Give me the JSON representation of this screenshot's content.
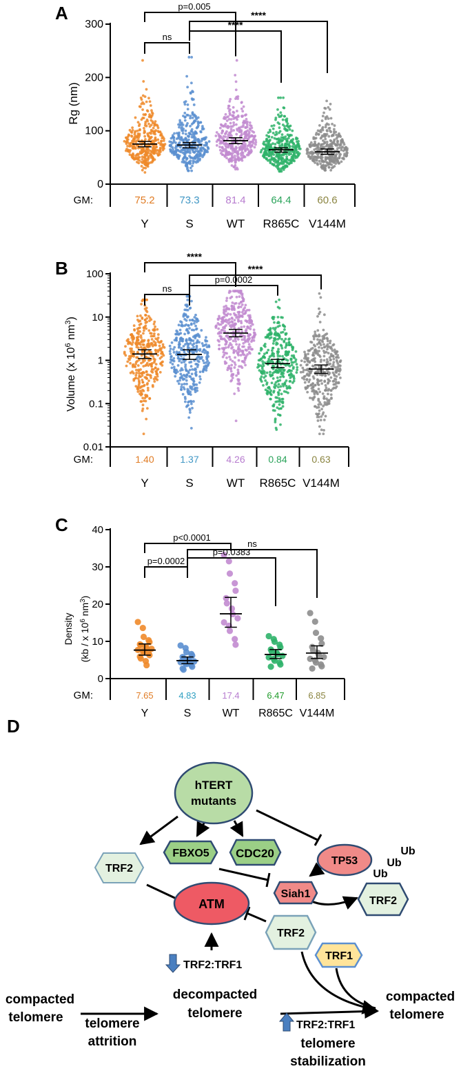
{
  "groups": [
    "Y",
    "S",
    "WT",
    "R865C",
    "V144M"
  ],
  "gm_label": "GM:",
  "colors": {
    "Y": "#ef8a2a",
    "S": "#5b8fd0",
    "WT": "#c28bd0",
    "R865C": "#2fb36a",
    "V144M": "#8d8d8d",
    "gm_Y": "#e07b23",
    "gm_S": "#3f96c4",
    "gm_WT": "#b77ccf",
    "gm_R865C": "#2aa35a",
    "gm_V144M": "#8a8440",
    "gm_S_C": "#2fa0c2",
    "gm_R865C_C": "#1f9a2a",
    "gm_V144M_C": "#8a8440"
  },
  "chart_data": [
    {
      "panel": "A",
      "type": "scatter",
      "ylabel": "Rg (nm)",
      "ylim": [
        0,
        300
      ],
      "yticks": [
        "0",
        "100",
        "200",
        "300"
      ],
      "categories": [
        "Y",
        "S",
        "WT",
        "R865C",
        "V144M"
      ],
      "gm": [
        "75.2",
        "73.3",
        "81.4",
        "64.4",
        "60.6"
      ],
      "gm_values": [
        75.2,
        73.3,
        81.4,
        64.4,
        60.6
      ],
      "ci": [
        [
          70,
          80
        ],
        [
          68,
          78
        ],
        [
          76,
          87
        ],
        [
          60,
          68
        ],
        [
          56,
          66
        ]
      ],
      "ranges": [
        [
          22,
          232
        ],
        [
          25,
          238
        ],
        [
          28,
          232
        ],
        [
          24,
          162
        ],
        [
          26,
          156
        ]
      ],
      "brackets": [
        {
          "from": "Y",
          "to": "S",
          "label": "ns"
        },
        {
          "from": "Y",
          "to": "WT",
          "label": "p=0.005"
        },
        {
          "from": "S",
          "to": "R865C",
          "label": "****"
        },
        {
          "from": "S",
          "to": "V144M",
          "label": "****"
        }
      ]
    },
    {
      "panel": "B",
      "type": "scatter",
      "scale": "log",
      "ylabel_main": "Volume (x 10",
      "ylabel_sup": "6",
      "ylabel_tail": " nm",
      "ylabel_sup2": "3",
      "ylabel_close": ")",
      "ylim": [
        0.01,
        100
      ],
      "yticks": [
        "0.01",
        "0.1",
        "1",
        "10",
        "100"
      ],
      "categories": [
        "Y",
        "S",
        "WT",
        "R865C",
        "V144M"
      ],
      "gm": [
        "1.40",
        "1.37",
        "4.26",
        "0.84",
        "0.63"
      ],
      "gm_values": [
        1.4,
        1.37,
        4.26,
        0.84,
        0.63
      ],
      "ci": [
        [
          1.1,
          1.75
        ],
        [
          1.05,
          1.75
        ],
        [
          3.5,
          5.2
        ],
        [
          0.68,
          1.05
        ],
        [
          0.5,
          0.78
        ]
      ],
      "ranges": [
        [
          0.02,
          25
        ],
        [
          0.027,
          30
        ],
        [
          0.04,
          40
        ],
        [
          0.025,
          25
        ],
        [
          0.02,
          35
        ]
      ],
      "brackets": [
        {
          "from": "Y",
          "to": "S",
          "label": "ns"
        },
        {
          "from": "Y",
          "to": "WT",
          "label": "****"
        },
        {
          "from": "S",
          "to": "R865C",
          "label": "p=0.0002"
        },
        {
          "from": "S",
          "to": "V144M",
          "label": "****"
        }
      ]
    },
    {
      "panel": "C",
      "type": "scatter",
      "ylabel_line1": "Density",
      "ylabel_main": "(kb / x 10",
      "ylabel_sup": "6",
      "ylabel_tail": " nm",
      "ylabel_sup2": "3",
      "ylabel_close": ")",
      "ylim": [
        0,
        40
      ],
      "yticks": [
        "0",
        "10",
        "20",
        "30",
        "40"
      ],
      "categories": [
        "Y",
        "S",
        "WT",
        "R865C",
        "V144M"
      ],
      "gm": [
        "7.65",
        "4.83",
        "17.4",
        "6.47",
        "6.85"
      ],
      "gm_values": [
        7.65,
        4.83,
        17.4,
        6.47,
        6.85
      ],
      "ci": [
        [
          6.3,
          9.3
        ],
        [
          4.0,
          5.8
        ],
        [
          13.8,
          21.8
        ],
        [
          5.4,
          7.8
        ],
        [
          5.4,
          8.8
        ]
      ],
      "values": [
        [
          15.2,
          13.6,
          11.2,
          10.3,
          9.8,
          9.2,
          9.0,
          8.6,
          8.2,
          8.0,
          7.7,
          7.4,
          7.2,
          6.8,
          6.3,
          5.9,
          5.4,
          4.7,
          3.6
        ],
        [
          8.9,
          8.2,
          7.1,
          6.6,
          6.2,
          5.8,
          5.4,
          5.1,
          4.9,
          4.6,
          4.4,
          4.1,
          3.9,
          3.6,
          3.2,
          2.7,
          2.4
        ],
        [
          33.2,
          31.5,
          28.2,
          25.6,
          23.6,
          21.6,
          20.2,
          18.8,
          17.3,
          16.2,
          15.1,
          14.2,
          12.8,
          10.6,
          9.1
        ],
        [
          11.4,
          10.6,
          9.9,
          9.1,
          8.4,
          7.8,
          7.3,
          6.9,
          6.5,
          6.1,
          5.7,
          5.3,
          4.8,
          4.3,
          3.8,
          3.2
        ],
        [
          17.6,
          15.3,
          12.3,
          10.8,
          9.4,
          8.5,
          7.6,
          6.9,
          6.3,
          5.8,
          5.3,
          4.9,
          4.3,
          3.8,
          3.3,
          2.7
        ]
      ],
      "brackets": [
        {
          "from": "Y",
          "to": "S",
          "label": "p=0.0002"
        },
        {
          "from": "Y",
          "to": "WT",
          "label": "p<0.0001"
        },
        {
          "from": "S",
          "to": "R865C",
          "label": "p=0.0383"
        },
        {
          "from": "S",
          "to": "V144M",
          "label": "ns"
        }
      ]
    }
  ],
  "panels": {
    "a": "A",
    "b": "B",
    "c": "C",
    "d": "D"
  },
  "diagram": {
    "htert_line1": "hTERT",
    "htert_line2": "mutants",
    "fbxo5": "FBXO5",
    "cdc20": "CDC20",
    "tp53": "TP53",
    "trf2": "TRF2",
    "siah1": "Siah1",
    "atm": "ATM",
    "trf2_ub": "TRF2",
    "ub1": "Ub",
    "ub2": "Ub",
    "ub3": "Ub",
    "trf2_complex": "TRF2",
    "trf1": "TRF1",
    "ratio_down": "TRF2:TRF1",
    "ratio_up": "TRF2:TRF1",
    "compacted_left_1": "compacted",
    "compacted_left_2": "telomere",
    "decompacted_1": "decompacted",
    "decompacted_2": "telomere",
    "compacted_right_1": "compacted",
    "compacted_right_2": "telomere",
    "attrition_1": "telomere",
    "attrition_2": "attrition",
    "stabilization_1": "telomere",
    "stabilization_2": "stabilization"
  }
}
